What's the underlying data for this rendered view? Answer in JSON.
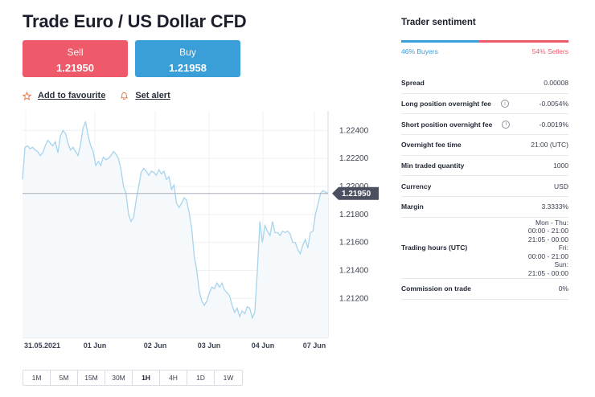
{
  "title": "Trade Euro / US Dollar CFD",
  "sell": {
    "label": "Sell",
    "price": "1.21950"
  },
  "buy": {
    "label": "Buy",
    "price": "1.21958"
  },
  "actions": {
    "favourite": "Add to favourite",
    "alert": "Set alert"
  },
  "timeframes": [
    "1M",
    "5M",
    "15M",
    "30M",
    "1H",
    "4H",
    "1D",
    "1W"
  ],
  "active_timeframe": "1H",
  "colors": {
    "sell": "#ef5a6a",
    "buy": "#3a9ed8",
    "line": "#a8d4ec"
  },
  "chart_data": {
    "type": "area",
    "y_ticks": [
      "1.22400",
      "1.22200",
      "1.22000",
      "1.21800",
      "1.21600",
      "1.21400",
      "1.21200"
    ],
    "y_tick_values": [
      1.224,
      1.222,
      1.22,
      1.218,
      1.216,
      1.214,
      1.212
    ],
    "x_ticks": [
      "31.05.2021",
      "01 Jun",
      "02 Jun",
      "03 Jun",
      "04 Jun",
      "07 Jun"
    ],
    "current_price": "1.21950",
    "current_value": 1.2195,
    "ylim": [
      1.2092,
      1.2254
    ],
    "grid": true,
    "values": [
      1.2205,
      1.2228,
      1.2229,
      1.2227,
      1.2228,
      1.2226,
      1.2225,
      1.2222,
      1.2224,
      1.2229,
      1.2233,
      1.2231,
      1.2229,
      1.2232,
      1.2224,
      1.2236,
      1.224,
      1.2238,
      1.2231,
      1.2226,
      1.2228,
      1.2225,
      1.2222,
      1.223,
      1.2242,
      1.2246,
      1.2236,
      1.2229,
      1.2225,
      1.2215,
      1.2218,
      1.2215,
      1.2221,
      1.2219,
      1.222,
      1.2222,
      1.2225,
      1.2223,
      1.222,
      1.2212,
      1.22,
      1.2195,
      1.218,
      1.2175,
      1.2178,
      1.219,
      1.22,
      1.221,
      1.2213,
      1.2211,
      1.2208,
      1.2211,
      1.221,
      1.2208,
      1.2212,
      1.2209,
      1.2211,
      1.2205,
      1.2207,
      1.2198,
      1.2201,
      1.2188,
      1.2185,
      1.2188,
      1.2192,
      1.219,
      1.2181,
      1.217,
      1.215,
      1.214,
      1.2125,
      1.2118,
      1.2115,
      1.2118,
      1.2124,
      1.2128,
      1.2127,
      1.2131,
      1.2128,
      1.2131,
      1.2126,
      1.2124,
      1.2122,
      1.2115,
      1.211,
      1.2113,
      1.2107,
      1.2111,
      1.2109,
      1.2114,
      1.2113,
      1.2106,
      1.211,
      1.214,
      1.2175,
      1.216,
      1.2172,
      1.2168,
      1.2165,
      1.2175,
      1.2167,
      1.2167,
      1.2165,
      1.2168,
      1.2167,
      1.2168,
      1.2166,
      1.216,
      1.216,
      1.2155,
      1.2152,
      1.2158,
      1.2162,
      1.2156,
      1.2167,
      1.2168,
      1.218,
      1.2187,
      1.2195,
      1.2197,
      1.2196,
      1.2195
    ]
  },
  "sentiment": {
    "title": "Trader sentiment",
    "buyers_pct": 46,
    "sellers_pct": 54,
    "buyers_label": "46% Buyers",
    "sellers_label": "54% Sellers"
  },
  "info_rows": [
    {
      "key": "Spread",
      "value": "0.00008",
      "info": false
    },
    {
      "key": "Long position overnight fee",
      "value": "-0.0054%",
      "info": true
    },
    {
      "key": "Short position overnight fee",
      "value": "-0.0019%",
      "info": true
    },
    {
      "key": "Overnight fee time",
      "value": "21:00 (UTC)",
      "info": false
    },
    {
      "key": "Min traded quantity",
      "value": "1000",
      "info": false
    },
    {
      "key": "Currency",
      "value": "USD",
      "info": false
    },
    {
      "key": "Margin",
      "value": "3.3333%",
      "info": false
    },
    {
      "key": "Trading hours (UTC)",
      "value": "Mon - Thu:\n00:00 - 21:00\n21:05 - 00:00\nFri:\n00:00 - 21:00\nSun:\n21:05 - 00:00",
      "info": false,
      "tall": true
    },
    {
      "key": "Commission on trade",
      "value": "0%",
      "info": false
    }
  ]
}
